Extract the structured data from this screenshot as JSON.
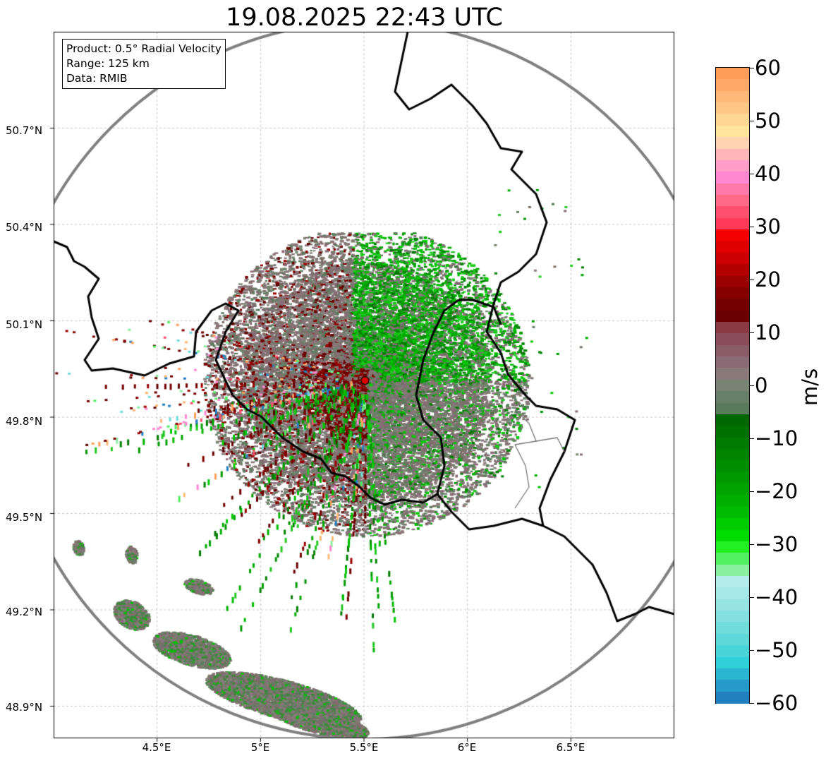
{
  "title": "19.08.2025 22:43 UTC",
  "infobox": {
    "product": "Product: 0.5° Radial Velocity",
    "range": "Range: 125 km",
    "data": "Data: RMIB"
  },
  "axes": {
    "lat_ticks": [
      "50.7°N",
      "50.4°N",
      "50.1°N",
      "49.8°N",
      "49.5°N",
      "49.2°N",
      "48.9°N"
    ],
    "lon_ticks": [
      "4.5°E",
      "5°E",
      "5.5°E",
      "6°E",
      "6.5°E"
    ],
    "lat_values": [
      50.7,
      50.4,
      50.1,
      49.8,
      49.5,
      49.2,
      48.9
    ],
    "lon_values": [
      4.5,
      5.0,
      5.5,
      6.0,
      6.5
    ],
    "lat_range": [
      48.8,
      51.0
    ],
    "lon_range": [
      4.0,
      7.0
    ],
    "grid": true
  },
  "radar": {
    "site_lon": 5.505,
    "site_lat": 49.914,
    "range_km": 125,
    "site_marker_color": "#e00000",
    "range_ring_color": "#808080"
  },
  "colorbar": {
    "unit": "m/s",
    "min": -60,
    "max": 60,
    "tick_labels": [
      "60",
      "50",
      "40",
      "30",
      "20",
      "10",
      "0",
      "−10",
      "−20",
      "−30",
      "−40",
      "−50",
      "−60"
    ],
    "tick_values": [
      60,
      50,
      40,
      30,
      20,
      10,
      0,
      -10,
      -20,
      -30,
      -40,
      -50,
      -60
    ],
    "colors_top_to_bottom": [
      "#ff9e5a",
      "#ffa868",
      "#ffb877",
      "#ffc686",
      "#ffd694",
      "#ffe49c",
      "#ffd2b0",
      "#ffb6b8",
      "#ff9ec8",
      "#ff88d0",
      "#ff7aa8",
      "#ff6a88",
      "#ff5070",
      "#ff3a58",
      "#f50000",
      "#e00000",
      "#cc0000",
      "#b30000",
      "#9a0000",
      "#850000",
      "#740000",
      "#6a0000",
      "#8a3a44",
      "#8a4c58",
      "#8a5c66",
      "#8a6a74",
      "#8a7a7a",
      "#7a8474",
      "#68806a",
      "#5a7a5c",
      "#006600",
      "#007000",
      "#007a00",
      "#008400",
      "#008e00",
      "#009800",
      "#00a200",
      "#00ae00",
      "#00bc00",
      "#00cc00",
      "#00dc00",
      "#22f022",
      "#50f060",
      "#88f0a0",
      "#b4ecec",
      "#a6e8e8",
      "#96e4e4",
      "#84e0e0",
      "#70dcdc",
      "#5ed8d8",
      "#48d4d8",
      "#30d0d8",
      "#2ab6d0",
      "#269ac8",
      "#2280c0"
    ]
  }
}
